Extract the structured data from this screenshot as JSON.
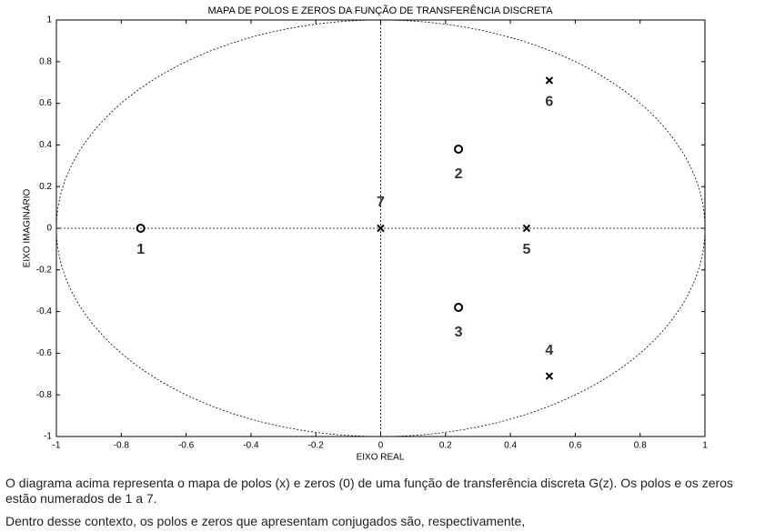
{
  "chart_data": {
    "type": "pole-zero",
    "title": "MAPA DE POLOS E ZEROS DA FUNÇÃO DE TRANSFERÊNCIA DISCRETA",
    "x_label": "EIXO REAL",
    "y_label": "EIXO IMAGINÁRIO",
    "xlim": [
      -1,
      1
    ],
    "ylim": [
      -1,
      1
    ],
    "xticks": [
      -1,
      -0.8,
      -0.6,
      -0.4,
      -0.2,
      0,
      0.2,
      0.4,
      0.6,
      0.8,
      1
    ],
    "yticks": [
      -1,
      -0.8,
      -0.6,
      -0.4,
      -0.2,
      0,
      0.2,
      0.4,
      0.6,
      0.8,
      1
    ],
    "unit_circle": true,
    "series": [
      {
        "marker": "o",
        "color": "#000000",
        "x": [
          -0.74,
          0.24,
          0.24
        ],
        "values": [
          0,
          0.38,
          -0.38
        ],
        "labels": [
          "1",
          "2",
          "3"
        ]
      },
      {
        "marker": "x",
        "color": "#000000",
        "x": [
          0.52,
          0.45,
          0.52,
          0
        ],
        "values": [
          -0.71,
          0,
          0.71,
          0
        ],
        "labels": [
          "4",
          "5",
          "6",
          "7"
        ]
      }
    ]
  },
  "text": [
    "O diagrama acima representa o mapa de polos (x) e zeros (0) de uma função de transferência discreta G(z). Os polos e os zeros estão numerados de 1 a 7.",
    "Dentro desse contexto, os polos e zeros que apresentam conjugados são, respectivamente,"
  ]
}
